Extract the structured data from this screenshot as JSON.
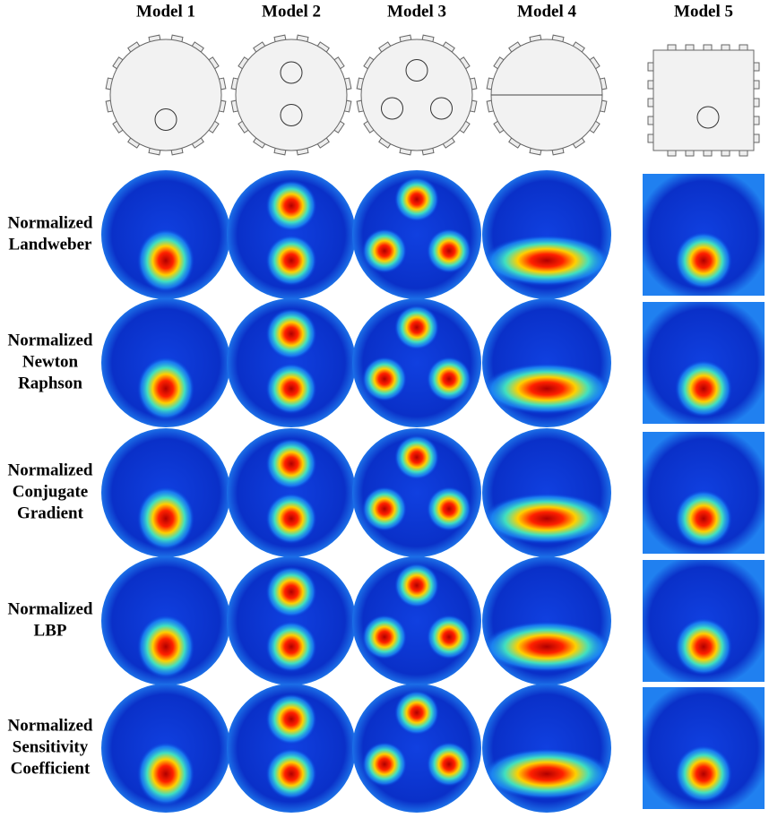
{
  "columns": [
    "Model 1",
    "Model 2",
    "Model 3",
    "Model 4",
    "Model 5"
  ],
  "rows": [
    {
      "label": [
        "Normalized",
        "Landweber"
      ]
    },
    {
      "label": [
        "Normalized",
        "Newton",
        "Raphson"
      ]
    },
    {
      "label": [
        "Normalized",
        "Conjugate",
        "Gradient"
      ]
    },
    {
      "label": [
        "Normalized",
        "LBP"
      ]
    },
    {
      "label": [
        "Normalized",
        "Sensitivity",
        "Coefficient"
      ]
    }
  ]
}
